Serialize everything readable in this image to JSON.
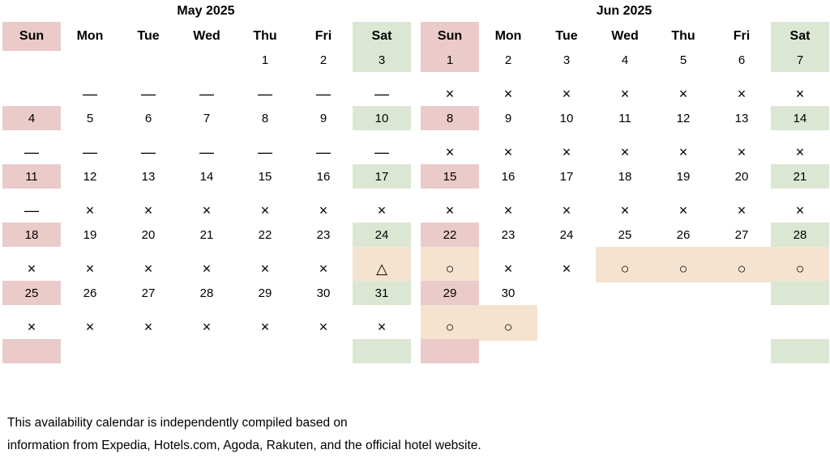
{
  "calendars": [
    {
      "title": "May 2025",
      "weekdays": [
        "Sun",
        "Mon",
        "Tue",
        "Wed",
        "Thu",
        "Fri",
        "Sat"
      ],
      "weeks": [
        {
          "days": [
            "",
            "",
            "",
            "",
            "1",
            "2",
            "3"
          ],
          "marks": [
            "",
            "—",
            "—",
            "—",
            "—",
            "—",
            "—"
          ]
        },
        {
          "days": [
            "4",
            "5",
            "6",
            "7",
            "8",
            "9",
            "10"
          ],
          "marks": [
            "—",
            "—",
            "—",
            "—",
            "—",
            "—",
            "—"
          ]
        },
        {
          "days": [
            "11",
            "12",
            "13",
            "14",
            "15",
            "16",
            "17"
          ],
          "marks": [
            "—",
            "×",
            "×",
            "×",
            "×",
            "×",
            "×"
          ]
        },
        {
          "days": [
            "18",
            "19",
            "20",
            "21",
            "22",
            "23",
            "24"
          ],
          "marks": [
            "×",
            "×",
            "×",
            "×",
            "×",
            "×",
            "△"
          ]
        },
        {
          "days": [
            "25",
            "26",
            "27",
            "28",
            "29",
            "30",
            "31"
          ],
          "marks": [
            "×",
            "×",
            "×",
            "×",
            "×",
            "×",
            "×"
          ]
        },
        {
          "days": [
            "",
            "",
            "",
            "",
            "",
            "",
            ""
          ],
          "marks": [
            "",
            "",
            "",
            "",
            "",
            "",
            ""
          ]
        }
      ]
    },
    {
      "title": "Jun 2025",
      "weekdays": [
        "Sun",
        "Mon",
        "Tue",
        "Wed",
        "Thu",
        "Fri",
        "Sat"
      ],
      "weeks": [
        {
          "days": [
            "1",
            "2",
            "3",
            "4",
            "5",
            "6",
            "7"
          ],
          "marks": [
            "×",
            "×",
            "×",
            "×",
            "×",
            "×",
            "×"
          ]
        },
        {
          "days": [
            "8",
            "9",
            "10",
            "11",
            "12",
            "13",
            "14"
          ],
          "marks": [
            "×",
            "×",
            "×",
            "×",
            "×",
            "×",
            "×"
          ]
        },
        {
          "days": [
            "15",
            "16",
            "17",
            "18",
            "19",
            "20",
            "21"
          ],
          "marks": [
            "×",
            "×",
            "×",
            "×",
            "×",
            "×",
            "×"
          ]
        },
        {
          "days": [
            "22",
            "23",
            "24",
            "25",
            "26",
            "27",
            "28"
          ],
          "marks": [
            "○",
            "×",
            "×",
            "○",
            "○",
            "○",
            "○"
          ]
        },
        {
          "days": [
            "29",
            "30",
            "",
            "",
            "",
            "",
            ""
          ],
          "marks": [
            "○",
            "○",
            "",
            "",
            "",
            "",
            ""
          ]
        },
        {
          "days": [
            "",
            "",
            "",
            "",
            "",
            "",
            ""
          ],
          "marks": [
            "",
            "",
            "",
            "",
            "",
            "",
            ""
          ]
        }
      ]
    }
  ],
  "legend_marks": {
    "unavailable": "×",
    "limited": "△",
    "available": "○",
    "no_data": "—"
  },
  "colors": {
    "sunday": "#ebcaca",
    "saturday": "#dbe7d3",
    "available_highlight": "#f6e3cf"
  },
  "footer": {
    "line1": "This availability calendar is independently compiled based on",
    "line2": "information from Expedia, Hotels.com, Agoda, Rakuten, and the official hotel website."
  }
}
